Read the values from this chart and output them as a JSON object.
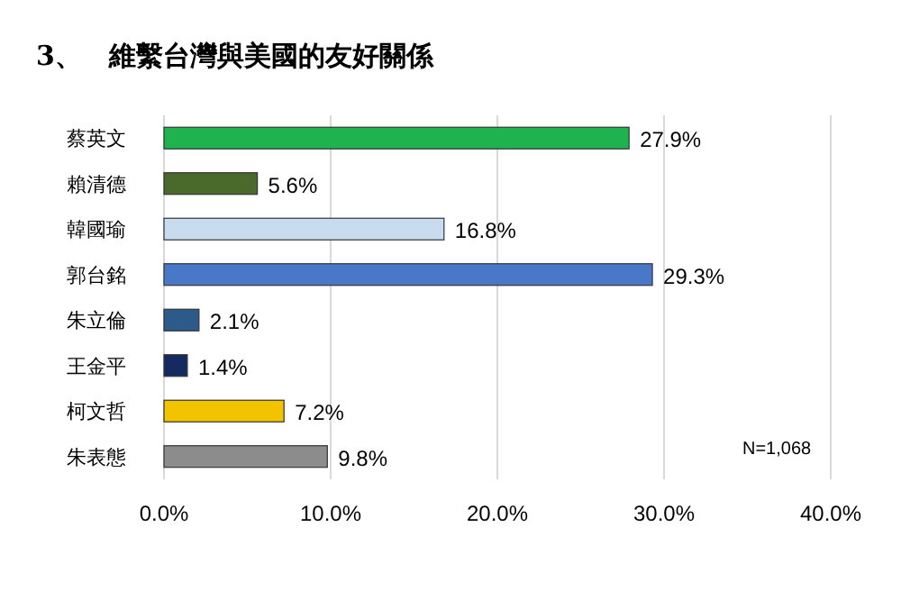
{
  "chart_data": {
    "type": "bar",
    "orientation": "horizontal",
    "title": "3、　維繫台灣與美國的友好關係",
    "categories": [
      "蔡英文",
      "賴清德",
      "韓國瑜",
      "郭台銘",
      "朱立倫",
      "王金平",
      "柯文哲",
      "朱表態"
    ],
    "values": [
      27.9,
      5.6,
      16.8,
      29.3,
      2.1,
      1.4,
      7.2,
      9.8
    ],
    "colors": [
      "#1fb34f",
      "#4a6a2c",
      "#c9dcef",
      "#4a78c8",
      "#2c5a8a",
      "#142a60",
      "#f2c400",
      "#8c8c8c"
    ],
    "value_labels": [
      "27.9%",
      "5.6%",
      "16.8%",
      "29.3%",
      "2.1%",
      "1.4%",
      "7.2%",
      "9.8%"
    ],
    "xlim": [
      0,
      40
    ],
    "xticks": [
      {
        "value": 0,
        "label": "0.0%"
      },
      {
        "value": 10,
        "label": "10.0%"
      },
      {
        "value": 20,
        "label": "20.0%"
      },
      {
        "value": 30,
        "label": "30.0%"
      },
      {
        "value": 40,
        "label": "40.0%"
      }
    ],
    "grid": "x",
    "annotations": [
      "N=1,068"
    ]
  }
}
